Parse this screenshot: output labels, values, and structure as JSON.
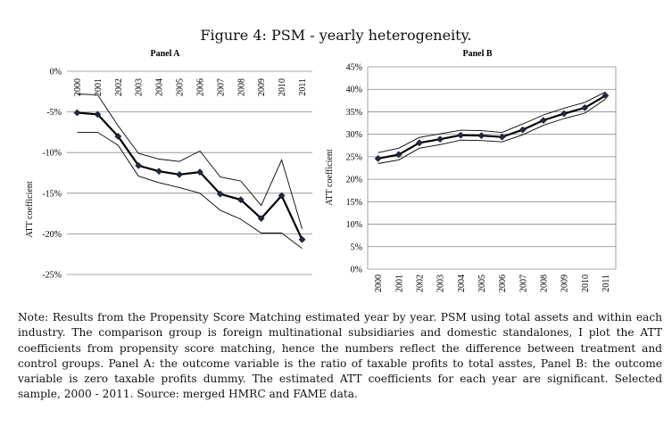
{
  "figure_title": "Figure 4:  PSM - yearly heterogeneity.",
  "note": "Note:  Results from the Propensity Score Matching estimated year by year.  PSM using total assets and within each industry.  The comparison group is foreign multinational subsidiaries and domestic standalones, I plot the ATT coefficients from propensity score matching, hence the numbers reflect the difference between treatment and control groups.  Panel A: the outcome variable is the ratio of taxable profits to total asstes, Panel B: the outcome variable is zero taxable profits dummy.  The estimated ATT coefficients for each year are significant.  Selected sample, 2000 - 2011.  Source: merged HMRC and FAME data.",
  "chart_data": [
    {
      "type": "line",
      "panel": "A",
      "title": "Panel A",
      "ylabel": "ATT coefficient",
      "xlabel": "",
      "x": [
        "2000",
        "2001",
        "2002",
        "2003",
        "2004",
        "2005",
        "2006",
        "2007",
        "2008",
        "2009",
        "2010",
        "2011"
      ],
      "ylim": [
        -25,
        0
      ],
      "yticks": [
        0,
        -5,
        -10,
        -15,
        -20,
        -25
      ],
      "ytick_labels": [
        "0%",
        "-5%",
        "-10%",
        "-15%",
        "-20%",
        "-25%"
      ],
      "x_axis_position": "top",
      "grid": true,
      "series": [
        {
          "role": "estimate",
          "marker": "diamond",
          "values": [
            -5.1,
            -5.3,
            -8.0,
            -11.6,
            -12.3,
            -12.7,
            -12.4,
            -15.1,
            -15.8,
            -18.1,
            -15.3,
            -20.7
          ]
        },
        {
          "role": "upper",
          "values": [
            -2.8,
            -2.9,
            -6.7,
            -10.1,
            -10.8,
            -11.1,
            -9.8,
            -13.0,
            -13.5,
            -16.5,
            -10.9,
            -19.4
          ]
        },
        {
          "role": "lower",
          "values": [
            -7.5,
            -7.5,
            -9.1,
            -12.9,
            -13.7,
            -14.3,
            -15.0,
            -17.1,
            -18.2,
            -19.9,
            -19.9,
            -21.8
          ]
        }
      ]
    },
    {
      "type": "line",
      "panel": "B",
      "title": "Panel B",
      "ylabel": "ATT coefficient",
      "xlabel": "",
      "x": [
        "2000",
        "2001",
        "2002",
        "2003",
        "2004",
        "2005",
        "2006",
        "2007",
        "2008",
        "2009",
        "2010",
        "2011"
      ],
      "ylim": [
        0,
        45
      ],
      "yticks": [
        0,
        5,
        10,
        15,
        20,
        25,
        30,
        35,
        40,
        45
      ],
      "ytick_labels": [
        "0%",
        "5%",
        "10%",
        "15%",
        "20%",
        "25%",
        "30%",
        "35%",
        "40%",
        "45%"
      ],
      "x_axis_position": "bottom",
      "grid": true,
      "series": [
        {
          "role": "estimate",
          "marker": "diamond",
          "values": [
            24.6,
            25.5,
            28.1,
            28.9,
            29.8,
            29.7,
            29.4,
            31.0,
            33.1,
            34.6,
            35.9,
            38.6
          ]
        },
        {
          "role": "upper",
          "values": [
            25.9,
            26.9,
            29.3,
            30.1,
            30.9,
            30.8,
            30.4,
            32.3,
            34.3,
            35.8,
            37.1,
            39.4
          ]
        },
        {
          "role": "lower",
          "values": [
            23.5,
            24.3,
            26.9,
            27.7,
            28.7,
            28.6,
            28.3,
            29.9,
            32.0,
            33.5,
            34.7,
            37.8
          ]
        }
      ]
    }
  ]
}
